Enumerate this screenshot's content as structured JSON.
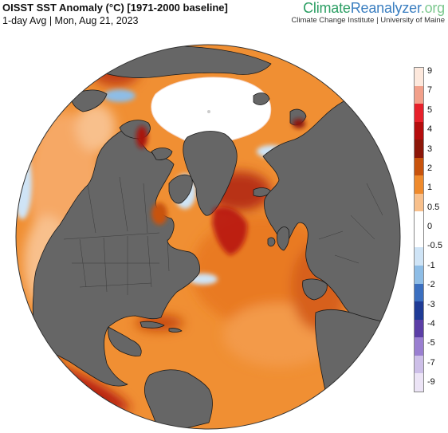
{
  "header": {
    "title": "OISST SST Anomaly (°C) [1971-2000 baseline]",
    "subtitle": "1-day Avg | Mon, Aug 21, 2023"
  },
  "brand": {
    "logo_part1": "Climate",
    "logo_part2": "Reanalyzer",
    "logo_part3": ".org",
    "tagline": "Climate Change Institute | University of Maine"
  },
  "legend": {
    "labels": [
      "9",
      "7",
      "5",
      "4",
      "3",
      "2",
      "1",
      "0.5",
      "0",
      "-0.5",
      "-1",
      "-2",
      "-3",
      "-4",
      "-5",
      "-7",
      "-9"
    ],
    "colors": [
      "#fde8dc",
      "#f2a08a",
      "#e7202a",
      "#b50d0d",
      "#8c1608",
      "#c8530c",
      "#ef8a2c",
      "#f8c08c",
      "#ffffff",
      "#ffffff",
      "#cfe4f6",
      "#8ebde6",
      "#3b6fc0",
      "#1f3b96",
      "#5b3ea6",
      "#9a7fd1",
      "#cdbfe8",
      "#ece4f6"
    ]
  },
  "map": {
    "projection": "orthographic (north-pole tilted, Atlantic-centered)",
    "colors": {
      "land": "#666666",
      "sea_ice": "#ffffff",
      "ocean_warm": "#ef8a2c",
      "ocean_hot": "#b50d0d",
      "ocean_cool": "#cfe4f6",
      "ocean_cold": "#3b6fc0",
      "borders": "#1a1a1a"
    }
  }
}
